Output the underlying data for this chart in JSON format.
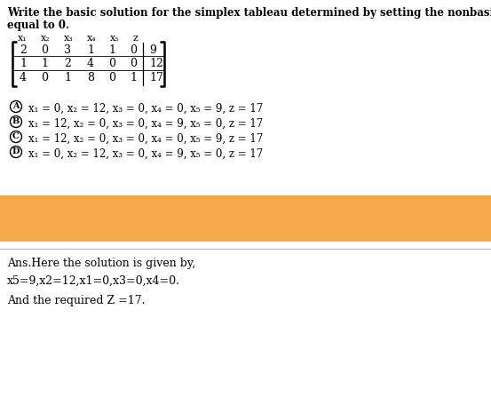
{
  "title_line1": "Write the basic solution for the simplex tableau determined by setting the nonbasic variables",
  "title_line2": "equal to 0.",
  "header_labels": [
    "x₁",
    "x₂",
    "x₃",
    "x₄",
    "x₅",
    "z"
  ],
  "matrix": [
    [
      "2",
      "0",
      "3",
      "1",
      "1",
      "0",
      "9"
    ],
    [
      "1",
      "1",
      "2",
      "4",
      "0",
      "0",
      "12"
    ],
    [
      "4",
      "0",
      "1",
      "8",
      "0",
      "1",
      "17"
    ]
  ],
  "options": [
    {
      "label": "A",
      "text": "x₁ = 0, x₂ = 12, x₃ = 0, x₄ = 0, x₅ = 9, z = 17"
    },
    {
      "label": "B",
      "text": "x₁ = 12, x₂ = 0, x₃ = 0, x₄ = 9, x₅ = 0, z = 17"
    },
    {
      "label": "C",
      "text": "x₁ = 12, x₂ = 0, x₃ = 0, x₄ = 0, x₅ = 9, z = 17"
    },
    {
      "label": "D",
      "text": "x₁ = 0, x₂ = 12, x₃ = 0, x₄ = 9, x₅ = 0, z = 17"
    }
  ],
  "answer_line1": "Ans.Here the solution is given by,",
  "answer_line2": "x5=9,x2=12,x1=0,x3=0,x4=0.",
  "answer_line3": "And the required Z =17.",
  "highlight_color": "#F5A94A",
  "bg_color": "#ffffff",
  "text_color": "#000000",
  "title_fontsize": 8.5,
  "body_fontsize": 9.0,
  "matrix_fontsize": 9.0,
  "option_fontsize": 8.5
}
